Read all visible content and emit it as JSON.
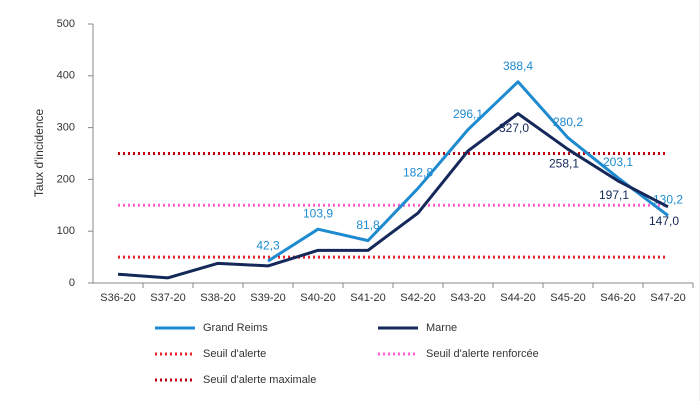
{
  "chart_data": {
    "type": "line",
    "y_label": "Taux d'incidence",
    "categories": [
      "S36-20",
      "S37-20",
      "S38-20",
      "S39-20",
      "S40-20",
      "S41-20",
      "S42-20",
      "S43-20",
      "S44-20",
      "S45-20",
      "S46-20",
      "S47-20"
    ],
    "series": [
      {
        "name": "Grand Reims",
        "color": "#1e8bd0",
        "values": [
          null,
          null,
          null,
          42.3,
          103.9,
          81.8,
          182.8,
          296.1,
          388.4,
          280.2,
          203.1,
          130.2
        ],
        "value_labels": [
          null,
          null,
          null,
          "42,3",
          "103,9",
          "81,8",
          "182,8",
          "296,1",
          "388,4",
          "280,2",
          "203,1",
          "130,2"
        ]
      },
      {
        "name": "Marne",
        "color": "#14285a",
        "values": [
          17,
          10,
          38,
          33,
          63,
          63,
          135,
          255,
          327.0,
          258.1,
          197.1,
          147.0
        ],
        "value_labels": [
          null,
          null,
          null,
          null,
          null,
          null,
          null,
          null,
          "327,0",
          "258,1",
          "197,1",
          "147,0"
        ]
      }
    ],
    "thresholds": [
      {
        "name": "Seuil d'alerte",
        "color": "#e8202a",
        "value": 50
      },
      {
        "name": "Seuil d'alerte renforcée",
        "color": "#ff5fd0",
        "value": 150
      },
      {
        "name": "Seuil d'alerte maximale",
        "color": "#c00010",
        "value": 250
      }
    ],
    "ylim": [
      0,
      500
    ],
    "yticks": [
      0,
      100,
      200,
      300,
      400,
      500
    ],
    "grid": false
  }
}
